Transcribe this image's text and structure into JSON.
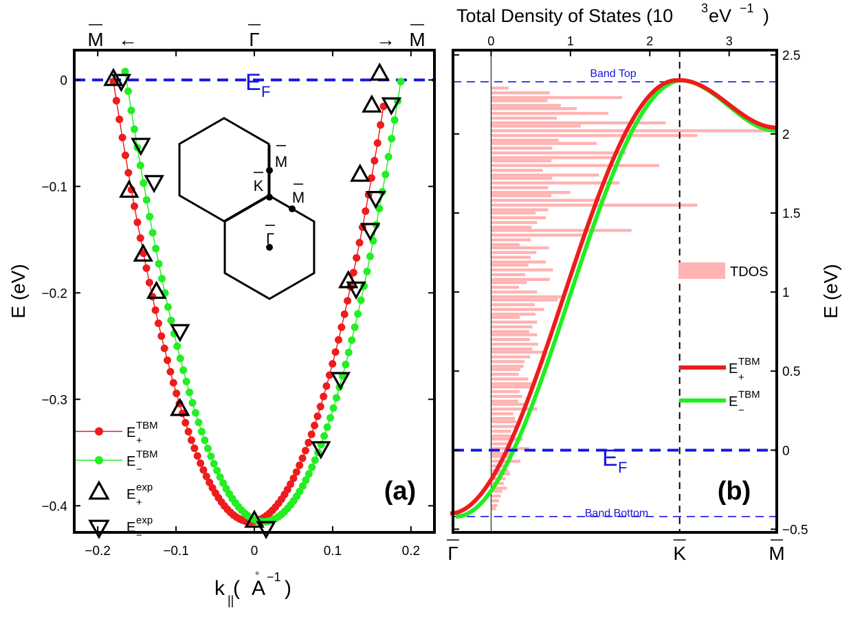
{
  "colors": {
    "red": "#ee1c1c",
    "green": "#22ee22",
    "fermi": "#1515e6",
    "band_edge": "#1515e6",
    "tdos": "#ffb3b3",
    "axes": "#000000"
  },
  "chart_data": [
    {
      "type": "scatter",
      "panel_label": "(a)",
      "xlabel": "k",
      "xlabel_sub": "||",
      "xlabel_unit_open": " (",
      "xlabel_unit_A": "A",
      "xlabel_unit_ring": "°",
      "xlabel_unit_sup": "−1",
      "xlabel_unit_close": ")",
      "ylabel": "E (eV)",
      "xlim": [
        -0.23,
        0.23
      ],
      "ylim": [
        -0.425,
        0.028
      ],
      "xticks": [
        -0.2,
        -0.1,
        0,
        0.1,
        0.2
      ],
      "xtick_labels": [
        "−0.2",
        "−0.1",
        "0",
        "0.1",
        "0.2"
      ],
      "yticks": [
        0,
        -0.1,
        -0.2,
        -0.3,
        -0.4
      ],
      "ytick_labels": [
        "0",
        "−0.1",
        "−0.2",
        "−0.3",
        "−0.4"
      ],
      "top_labels": {
        "left": "M",
        "center": "Γ",
        "right": "M",
        "left_arrow": "←",
        "right_arrow": "→"
      },
      "fermi_label": "E",
      "fermi_sub": "F",
      "fermi_energy": 0,
      "series": [
        {
          "name": "E+TBM",
          "color": "red",
          "kind": "line+dots",
          "k_min": -0.18,
          "k_max": 0.165,
          "k0": -0.005,
          "E0": -0.415,
          "m": 13.5
        },
        {
          "name": "E−TBM",
          "color": "green",
          "kind": "line+dots",
          "k_min": -0.165,
          "k_max": 0.187,
          "k0": 0.012,
          "E0": -0.415,
          "m": 13.5
        },
        {
          "name": "E+exp",
          "kind": "triangle-up",
          "x": [
            -0.18,
            -0.16,
            -0.142,
            -0.125,
            -0.095,
            0.0,
            0.12,
            0.135,
            0.15,
            0.16
          ],
          "y": [
            0.0,
            -0.105,
            -0.165,
            -0.2,
            -0.31,
            -0.415,
            -0.19,
            -0.09,
            -0.025,
            0.005
          ]
        },
        {
          "name": "E−exp",
          "kind": "triangle-down",
          "x": [
            -0.17,
            -0.145,
            -0.128,
            -0.095,
            0.015,
            0.085,
            0.11,
            0.13,
            0.148,
            0.155,
            0.175
          ],
          "y": [
            0.0,
            -0.06,
            -0.095,
            -0.235,
            -0.42,
            -0.345,
            -0.28,
            -0.195,
            -0.14,
            -0.11,
            -0.022
          ]
        }
      ],
      "legend": [
        {
          "base": "E",
          "sup": "TBM",
          "sub": "+"
        },
        {
          "base": "E",
          "sup": "TBM",
          "sub": "−"
        },
        {
          "base": "E",
          "sup": "exp",
          "sub": "+"
        },
        {
          "base": "E",
          "sup": "exp",
          "sub": "−"
        }
      ],
      "inset_labels": {
        "m1": "M",
        "k": "K",
        "m2": "M",
        "gamma": "Γ"
      }
    },
    {
      "type": "line",
      "panel_label": "(b)",
      "top_axis_label_main": "Total Density of States (10",
      "top_axis_label_sup1": "3",
      "top_axis_label_mid": " eV",
      "top_axis_label_sup2": "−1",
      "top_axis_label_close": ")",
      "top_xlim": [
        -0.48,
        3.6
      ],
      "top_xticks": [
        0,
        1,
        2,
        3
      ],
      "ylabel": "E (eV)",
      "ylim": [
        -0.52,
        2.53
      ],
      "yticks": [
        -0.5,
        0,
        0.5,
        1,
        1.5,
        2,
        2.5
      ],
      "ytick_labels": [
        "−0.5",
        "0",
        "0.5",
        "1",
        "1.5",
        "2",
        "2.5"
      ],
      "bottom_labels": [
        "Γ",
        "K",
        "M"
      ],
      "band_top_label": "Band Top",
      "band_top": 2.33,
      "band_bottom_label": "Band Bottom",
      "band_bottom": -0.42,
      "fermi_label": "E",
      "fermi_sub": "F",
      "fermi_energy": 0,
      "k_point_fraction": 0.7,
      "tdos_energies": [
        2.29,
        2.26,
        2.23,
        2.21,
        2.18,
        2.16,
        2.13,
        2.1,
        2.07,
        2.05,
        2.02,
        1.99,
        1.96,
        1.94,
        1.91,
        1.88,
        1.85,
        1.83,
        1.8,
        1.77,
        1.74,
        1.72,
        1.69,
        1.66,
        1.63,
        1.61,
        1.58,
        1.55,
        1.52,
        1.5,
        1.47,
        1.44,
        1.41,
        1.39,
        1.36,
        1.33,
        1.3,
        1.28,
        1.25,
        1.22,
        1.19,
        1.17,
        1.14,
        1.11,
        1.08,
        1.06,
        1.03,
        1.0,
        0.97,
        0.95,
        0.92,
        0.89,
        0.86,
        0.84,
        0.81,
        0.78,
        0.75,
        0.73,
        0.7,
        0.67,
        0.64,
        0.62,
        0.59,
        0.56,
        0.53,
        0.51,
        0.48,
        0.45,
        0.42,
        0.4,
        0.37,
        0.34,
        0.31,
        0.29,
        0.26,
        0.23,
        0.2,
        0.18,
        0.15,
        0.12,
        0.09,
        0.07,
        0.04,
        0.01,
        -0.02,
        -0.04,
        -0.07,
        -0.1,
        -0.13,
        -0.15,
        -0.18,
        -0.21,
        -0.24,
        -0.26,
        -0.29,
        -0.32,
        -0.35,
        -0.37
      ],
      "tdos_values": [
        0.22,
        0.74,
        1.65,
        0.71,
        0.88,
        1.08,
        1.48,
        0.83,
        2.2,
        1.13,
        3.5,
        2.6,
        0.85,
        1.33,
        0.77,
        1.7,
        1.53,
        0.76,
        2.12,
        0.65,
        1.36,
        0.77,
        1.62,
        0.72,
        1.0,
        0.76,
        1.42,
        2.6,
        0.72,
        0.56,
        0.69,
        0.58,
        0.51,
        1.77,
        1.2,
        0.5,
        0.36,
        0.73,
        0.57,
        0.5,
        0.69,
        0.47,
        0.78,
        0.43,
        0.74,
        0.45,
        0.35,
        0.58,
        0.92,
        0.84,
        0.55,
        0.67,
        0.56,
        0.36,
        0.58,
        0.52,
        0.48,
        0.58,
        0.49,
        0.59,
        0.52,
        0.66,
        0.49,
        0.42,
        0.41,
        0.37,
        0.35,
        0.47,
        0.52,
        0.55,
        0.36,
        0.39,
        0.34,
        0.42,
        0.58,
        0.28,
        0.3,
        0.32,
        0.34,
        0.25,
        0.29,
        0.4,
        0.22,
        0.48,
        0.24,
        0.25,
        0.37,
        0.2,
        0.22,
        0.24,
        0.18,
        0.16,
        0.2,
        0.14,
        0.12,
        0.1,
        0.08,
        0.06
      ],
      "series": [
        {
          "name": "TDOS",
          "color": "tdos",
          "kind": "hbar"
        },
        {
          "name": "E+TBM",
          "color": "red",
          "kind": "line",
          "gamma_E": -0.4,
          "K_E": 2.34,
          "M_E": 2.04
        },
        {
          "name": "E−TBM",
          "color": "green",
          "kind": "line",
          "gamma_E": -0.42,
          "K_E": 2.34,
          "M_E": 2.02
        }
      ],
      "legend": [
        {
          "label": "TDOS"
        },
        {
          "base": "E",
          "sup": "TBM",
          "sub": "+"
        },
        {
          "base": "E",
          "sup": "TBM",
          "sub": "−"
        }
      ]
    }
  ]
}
